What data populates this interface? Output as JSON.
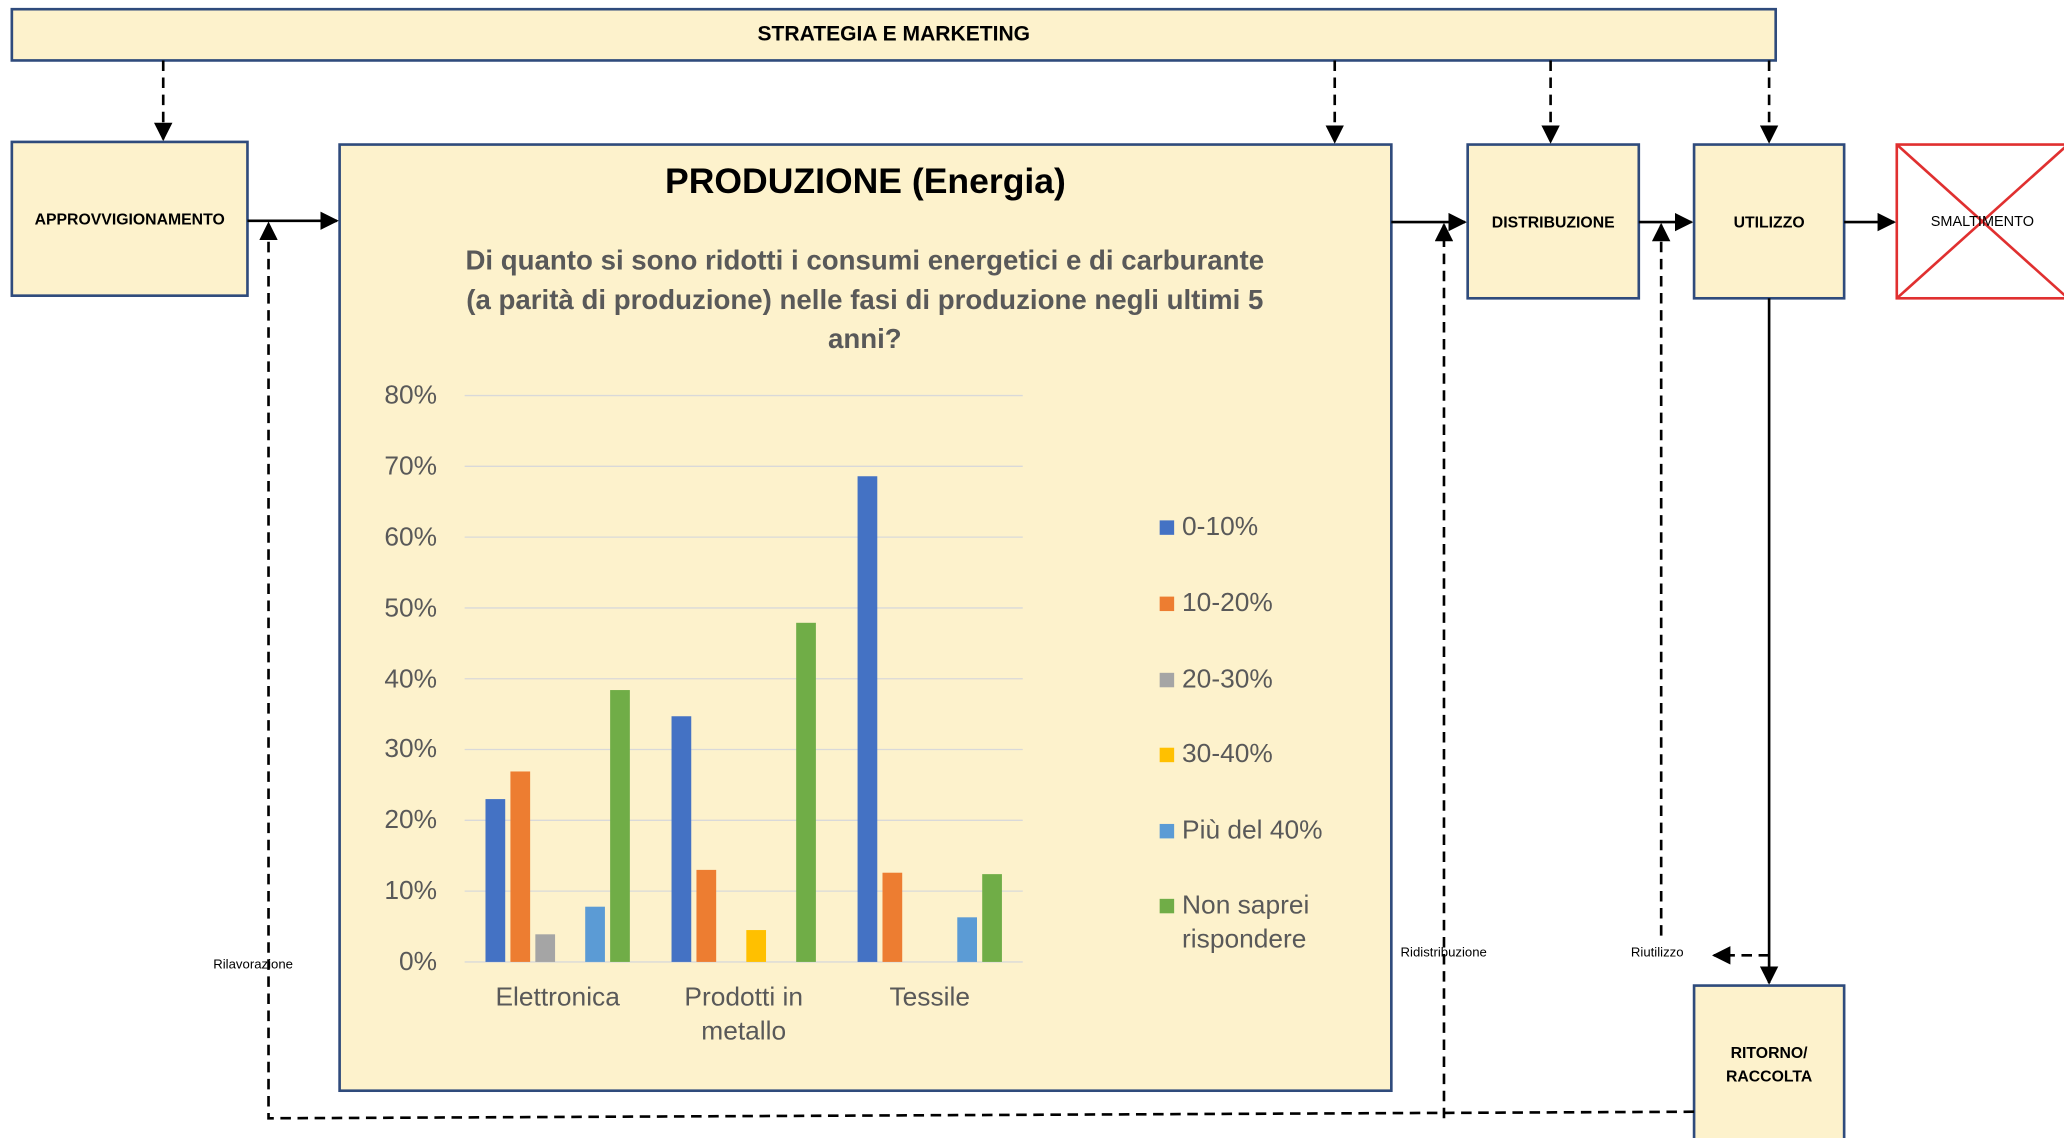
{
  "header": {
    "title": "STRATEGIA E MARKETING"
  },
  "nodes": [
    {
      "label": "APPROVVIGIONAMENTO"
    },
    {
      "label": "PRODUZIONE (Energia)"
    },
    {
      "label": "DISTRIBUZIONE"
    },
    {
      "label": "UTILIZZO"
    },
    {
      "label": "SMALTIMENTO"
    },
    {
      "label": "RITORNO/ RACCOLTA"
    }
  ],
  "flows": [
    {
      "label": "Rilavorazione"
    },
    {
      "label": "Ridistribuzione"
    },
    {
      "label": "Riutilizzo"
    }
  ],
  "chart_data": {
    "type": "bar",
    "title": "Di quanto si sono ridotti i consumi energetici e di carburante (a parità di produzione) nelle fasi di produzione negli ultimi 5 anni?",
    "categories": [
      "Elettronica",
      "Prodotti in metallo",
      "Tessile"
    ],
    "series": [
      {
        "name": "0-10%",
        "color": "#4472c4",
        "values": [
          23,
          34.7,
          68.6
        ]
      },
      {
        "name": "10-20%",
        "color": "#ed7d31",
        "values": [
          26.9,
          13,
          12.6
        ]
      },
      {
        "name": "20-30%",
        "color": "#a5a5a5",
        "values": [
          3.9,
          0,
          0
        ]
      },
      {
        "name": "30-40%",
        "color": "#ffc000",
        "values": [
          0,
          4.5,
          0
        ]
      },
      {
        "name": "Più del 40%",
        "color": "#5b9bd5",
        "values": [
          7.8,
          0,
          6.3
        ]
      },
      {
        "name": "Non saprei rispondere",
        "color": "#70ad47",
        "values": [
          38.4,
          47.9,
          12.4
        ]
      }
    ],
    "ylim": [
      0,
      80
    ],
    "yticks": [
      {
        "value": 0,
        "label": "0%"
      },
      {
        "value": 10,
        "label": "10%"
      },
      {
        "value": 20,
        "label": "20%"
      },
      {
        "value": 30,
        "label": "30%"
      },
      {
        "value": 40,
        "label": "40%"
      },
      {
        "value": 50,
        "label": "50%"
      },
      {
        "value": 60,
        "label": "60%"
      },
      {
        "value": 70,
        "label": "70%"
      },
      {
        "value": 80,
        "label": "80%"
      }
    ],
    "grid": true,
    "legend": "right"
  }
}
